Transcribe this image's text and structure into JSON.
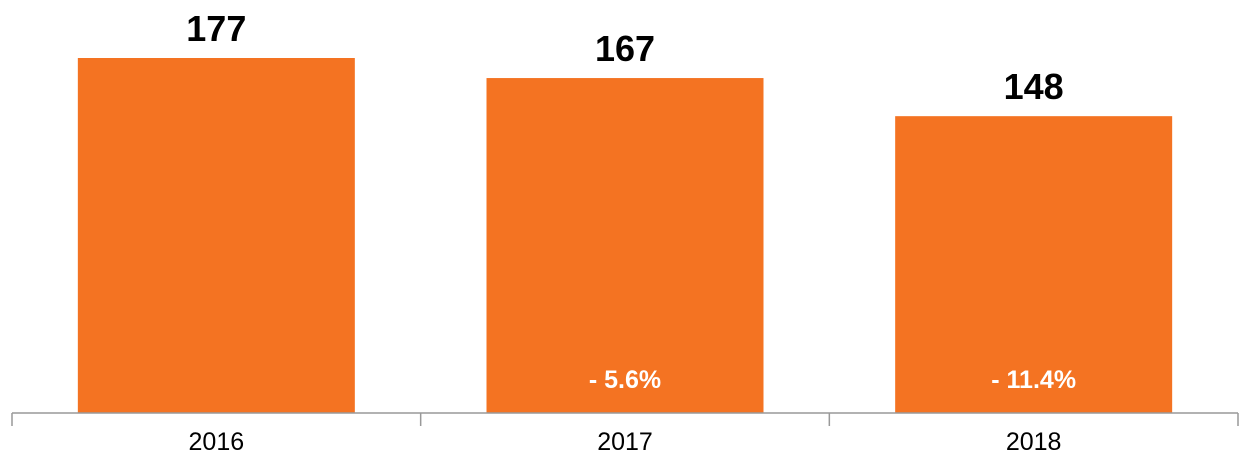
{
  "chart_data": {
    "type": "bar",
    "categories": [
      "2016",
      "2017",
      "2018"
    ],
    "values": [
      177,
      167,
      148
    ],
    "value_labels": [
      "177",
      "167",
      "148"
    ],
    "change_labels": [
      "",
      "- 5.6%",
      "- 11.4%"
    ],
    "ylim": [
      0,
      177
    ],
    "grid": false,
    "legend": "none",
    "colors": {
      "bar": "#f47322",
      "axis": "#999999",
      "value_text": "#000000",
      "change_text": "#ffffff"
    }
  }
}
